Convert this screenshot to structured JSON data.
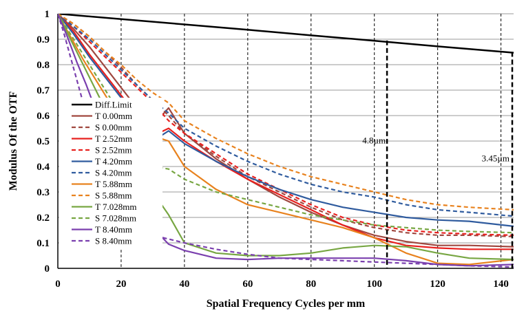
{
  "chart_data": {
    "type": "line",
    "title": "",
    "xlabel": "Spatial Frequency Cycles per mm",
    "ylabel": "Modulus Of  the OTF",
    "xlim": [
      0,
      144
    ],
    "ylim": [
      0,
      1
    ],
    "x_ticks": [
      0,
      20,
      40,
      60,
      80,
      100,
      120,
      140
    ],
    "y_ticks": [
      0,
      0.1,
      0.2,
      0.3,
      0.4,
      0.5,
      0.6,
      0.7,
      0.8,
      0.9,
      1
    ],
    "x_tick_labels": [
      "0",
      "20",
      "40",
      "60",
      "80",
      "100",
      "120",
      "140"
    ],
    "y_tick_labels": [
      "0",
      "0.1",
      "0.2",
      "0.3",
      "0.4",
      "0.5",
      "0.6",
      "0.7",
      "0.8",
      "0.9",
      "1"
    ],
    "grid": "dashed vertical lines at x ticks, solid horizontal lines at y ticks",
    "legend_position": "left, overlaying plot",
    "annotations": [
      {
        "text": "4.8µm",
        "x": 104
      },
      {
        "text": "3.45µm",
        "x": 144
      }
    ],
    "series": [
      {
        "name": "Diff.Limit",
        "color": "#000000",
        "dash": false,
        "points": [
          [
            0,
            1
          ],
          [
            20,
            0.979
          ],
          [
            40,
            0.958
          ],
          [
            60,
            0.937
          ],
          [
            80,
            0.915
          ],
          [
            100,
            0.894
          ],
          [
            120,
            0.872
          ],
          [
            144,
            0.847
          ]
        ]
      },
      {
        "name": "T 0.00mm",
        "color": "#a0473f",
        "dash": false,
        "points": [
          [
            0,
            1
          ],
          [
            5,
            0.94
          ],
          [
            10,
            0.87
          ],
          [
            15,
            0.79
          ],
          [
            20,
            0.71
          ],
          [
            25,
            0.63
          ],
          [
            30,
            0.56
          ],
          [
            35,
            0.63
          ],
          [
            40,
            0.53
          ],
          [
            50,
            0.43
          ],
          [
            60,
            0.35
          ],
          [
            70,
            0.28
          ],
          [
            80,
            0.22
          ],
          [
            90,
            0.17
          ],
          [
            100,
            0.13
          ],
          [
            110,
            0.105
          ],
          [
            120,
            0.09
          ],
          [
            130,
            0.09
          ],
          [
            144,
            0.085
          ]
        ]
      },
      {
        "name": "S 0.00mm",
        "color": "#a0473f",
        "dash": true,
        "points": [
          [
            0,
            1
          ],
          [
            5,
            0.96
          ],
          [
            10,
            0.91
          ],
          [
            15,
            0.85
          ],
          [
            20,
            0.79
          ],
          [
            25,
            0.72
          ],
          [
            30,
            0.66
          ],
          [
            35,
            0.6
          ],
          [
            40,
            0.53
          ],
          [
            50,
            0.44
          ],
          [
            60,
            0.36
          ],
          [
            70,
            0.3
          ],
          [
            80,
            0.24
          ],
          [
            90,
            0.19
          ],
          [
            100,
            0.16
          ],
          [
            110,
            0.14
          ],
          [
            120,
            0.13
          ],
          [
            130,
            0.13
          ],
          [
            144,
            0.125
          ]
        ]
      },
      {
        "name": "T 2.52mm",
        "color": "#e8201e",
        "dash": false,
        "points": [
          [
            0,
            1
          ],
          [
            5,
            0.93
          ],
          [
            10,
            0.84
          ],
          [
            15,
            0.76
          ],
          [
            20,
            0.68
          ],
          [
            25,
            0.6
          ],
          [
            30,
            0.52
          ],
          [
            35,
            0.55
          ],
          [
            40,
            0.5
          ],
          [
            50,
            0.42
          ],
          [
            60,
            0.35
          ],
          [
            70,
            0.29
          ],
          [
            80,
            0.23
          ],
          [
            90,
            0.17
          ],
          [
            100,
            0.12
          ],
          [
            110,
            0.09
          ],
          [
            120,
            0.08
          ],
          [
            130,
            0.075
          ],
          [
            144,
            0.075
          ]
        ]
      },
      {
        "name": "S 2.52mm",
        "color": "#e8201e",
        "dash": true,
        "points": [
          [
            0,
            1
          ],
          [
            5,
            0.95
          ],
          [
            10,
            0.89
          ],
          [
            15,
            0.83
          ],
          [
            20,
            0.77
          ],
          [
            25,
            0.71
          ],
          [
            30,
            0.65
          ],
          [
            35,
            0.58
          ],
          [
            40,
            0.53
          ],
          [
            50,
            0.45
          ],
          [
            60,
            0.37
          ],
          [
            70,
            0.31
          ],
          [
            80,
            0.25
          ],
          [
            90,
            0.2
          ],
          [
            100,
            0.17
          ],
          [
            110,
            0.15
          ],
          [
            120,
            0.14
          ],
          [
            130,
            0.135
          ],
          [
            144,
            0.13
          ]
        ]
      },
      {
        "name": "T 4.20mm",
        "color": "#2f5b9e",
        "dash": false,
        "points": [
          [
            0,
            1
          ],
          [
            5,
            0.92
          ],
          [
            10,
            0.83
          ],
          [
            15,
            0.75
          ],
          [
            20,
            0.67
          ],
          [
            25,
            0.59
          ],
          [
            30,
            0.5
          ],
          [
            35,
            0.54
          ],
          [
            40,
            0.49
          ],
          [
            50,
            0.42
          ],
          [
            60,
            0.36
          ],
          [
            70,
            0.31
          ],
          [
            80,
            0.27
          ],
          [
            90,
            0.24
          ],
          [
            100,
            0.22
          ],
          [
            110,
            0.2
          ],
          [
            120,
            0.19
          ],
          [
            130,
            0.185
          ],
          [
            144,
            0.165
          ]
        ]
      },
      {
        "name": "S 4.20mm",
        "color": "#2f5b9e",
        "dash": true,
        "points": [
          [
            0,
            1
          ],
          [
            5,
            0.95
          ],
          [
            10,
            0.9
          ],
          [
            15,
            0.84
          ],
          [
            20,
            0.78
          ],
          [
            25,
            0.72
          ],
          [
            30,
            0.66
          ],
          [
            35,
            0.61
          ],
          [
            40,
            0.55
          ],
          [
            50,
            0.48
          ],
          [
            60,
            0.42
          ],
          [
            70,
            0.37
          ],
          [
            80,
            0.33
          ],
          [
            90,
            0.3
          ],
          [
            100,
            0.28
          ],
          [
            110,
            0.25
          ],
          [
            120,
            0.23
          ],
          [
            130,
            0.22
          ],
          [
            144,
            0.205
          ]
        ]
      },
      {
        "name": "T 5.88mm",
        "color": "#e8821e",
        "dash": false,
        "points": [
          [
            0,
            1
          ],
          [
            4,
            0.91
          ],
          [
            8,
            0.82
          ],
          [
            12,
            0.74
          ],
          [
            16,
            0.66
          ],
          [
            20,
            0.6
          ],
          [
            25,
            0.55
          ],
          [
            30,
            0.52
          ],
          [
            35,
            0.5
          ],
          [
            40,
            0.4
          ],
          [
            50,
            0.31
          ],
          [
            60,
            0.25
          ],
          [
            70,
            0.22
          ],
          [
            80,
            0.19
          ],
          [
            90,
            0.16
          ],
          [
            100,
            0.12
          ],
          [
            110,
            0.06
          ],
          [
            120,
            0.02
          ],
          [
            130,
            0.015
          ],
          [
            144,
            0.035
          ]
        ]
      },
      {
        "name": "S 5.88mm",
        "color": "#e8821e",
        "dash": true,
        "points": [
          [
            0,
            1
          ],
          [
            5,
            0.96
          ],
          [
            10,
            0.91
          ],
          [
            15,
            0.85
          ],
          [
            20,
            0.8
          ],
          [
            25,
            0.74
          ],
          [
            30,
            0.69
          ],
          [
            35,
            0.65
          ],
          [
            40,
            0.58
          ],
          [
            50,
            0.51
          ],
          [
            60,
            0.45
          ],
          [
            70,
            0.4
          ],
          [
            80,
            0.36
          ],
          [
            90,
            0.33
          ],
          [
            100,
            0.3
          ],
          [
            110,
            0.27
          ],
          [
            120,
            0.25
          ],
          [
            130,
            0.24
          ],
          [
            144,
            0.23
          ]
        ]
      },
      {
        "name": "T 7.028mm",
        "color": "#77a642",
        "dash": false,
        "points": [
          [
            0,
            1
          ],
          [
            4,
            0.9
          ],
          [
            8,
            0.8
          ],
          [
            12,
            0.7
          ],
          [
            16,
            0.6
          ],
          [
            20,
            0.5
          ],
          [
            25,
            0.4
          ],
          [
            30,
            0.3
          ],
          [
            35,
            0.21
          ],
          [
            40,
            0.1
          ],
          [
            50,
            0.06
          ],
          [
            60,
            0.05
          ],
          [
            70,
            0.05
          ],
          [
            80,
            0.06
          ],
          [
            90,
            0.08
          ],
          [
            100,
            0.09
          ],
          [
            110,
            0.085
          ],
          [
            120,
            0.06
          ],
          [
            130,
            0.04
          ],
          [
            144,
            0.035
          ]
        ]
      },
      {
        "name": "S 7.028mm",
        "color": "#77a642",
        "dash": true,
        "points": [
          [
            0,
            1
          ],
          [
            4,
            0.92
          ],
          [
            8,
            0.84
          ],
          [
            12,
            0.76
          ],
          [
            16,
            0.68
          ],
          [
            20,
            0.6
          ],
          [
            25,
            0.5
          ],
          [
            30,
            0.4
          ],
          [
            35,
            0.39
          ],
          [
            40,
            0.35
          ],
          [
            50,
            0.3
          ],
          [
            60,
            0.27
          ],
          [
            70,
            0.24
          ],
          [
            80,
            0.21
          ],
          [
            90,
            0.19
          ],
          [
            100,
            0.17
          ],
          [
            110,
            0.16
          ],
          [
            120,
            0.15
          ],
          [
            130,
            0.145
          ],
          [
            144,
            0.14
          ]
        ]
      },
      {
        "name": "T 8.40mm",
        "color": "#7a3fae",
        "dash": false,
        "points": [
          [
            0,
            1
          ],
          [
            3,
            0.91
          ],
          [
            6,
            0.81
          ],
          [
            9,
            0.72
          ],
          [
            12,
            0.62
          ],
          [
            16,
            0.5
          ],
          [
            20,
            0.38
          ],
          [
            25,
            0.26
          ],
          [
            30,
            0.16
          ],
          [
            35,
            0.095
          ],
          [
            40,
            0.07
          ],
          [
            50,
            0.04
          ],
          [
            60,
            0.035
          ],
          [
            70,
            0.04
          ],
          [
            80,
            0.04
          ],
          [
            90,
            0.04
          ],
          [
            100,
            0.04
          ],
          [
            110,
            0.03
          ],
          [
            120,
            0.015
          ],
          [
            130,
            0.01
          ],
          [
            144,
            0.015
          ]
        ]
      },
      {
        "name": "S 8.40mm",
        "color": "#7a3fae",
        "dash": true,
        "points": [
          [
            0,
            1
          ],
          [
            2,
            0.92
          ],
          [
            4,
            0.83
          ],
          [
            6,
            0.74
          ],
          [
            8,
            0.65
          ],
          [
            11,
            0.53
          ],
          [
            15,
            0.4
          ],
          [
            20,
            0.28
          ],
          [
            25,
            0.19
          ],
          [
            30,
            0.13
          ],
          [
            35,
            0.115
          ],
          [
            40,
            0.1
          ],
          [
            50,
            0.075
          ],
          [
            60,
            0.055
          ],
          [
            70,
            0.04
          ],
          [
            80,
            0.035
          ],
          [
            90,
            0.03
          ],
          [
            100,
            0.025
          ],
          [
            110,
            0.02
          ],
          [
            120,
            0.015
          ],
          [
            130,
            0.01
          ],
          [
            144,
            0.005
          ]
        ]
      }
    ]
  }
}
